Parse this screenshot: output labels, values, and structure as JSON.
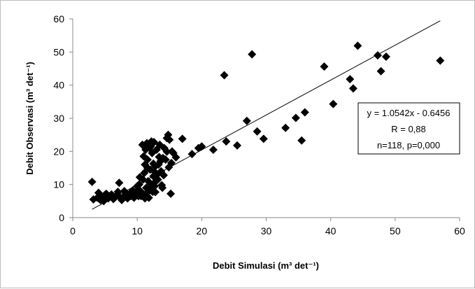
{
  "chart_data": {
    "type": "scatter",
    "title": "",
    "xlabel": "Debit Simulasi (m³ det⁻¹)",
    "ylabel": "Debit Observasi (m³ det⁻¹)",
    "xlim": [
      0,
      60
    ],
    "ylim": [
      0,
      60
    ],
    "xticks": [
      "0",
      "10",
      "20",
      "30",
      "40",
      "50",
      "60"
    ],
    "yticks": [
      "0",
      "10",
      "20",
      "30",
      "40",
      "50",
      "60"
    ],
    "grid": false,
    "legend": "none",
    "marker": "diamond",
    "marker_color": "#000000",
    "trendline": {
      "slope": 1.0542,
      "intercept": -0.6456,
      "x_range": [
        3,
        57
      ]
    },
    "annotation_lines": [
      "y = 1.0542x - 0.6456",
      "R = 0,88",
      "n=118, p=0,000"
    ],
    "points": [
      [
        3.0,
        10.8
      ],
      [
        3.2,
        5.5
      ],
      [
        3.8,
        6.0
      ],
      [
        4.0,
        7.5
      ],
      [
        4.3,
        5.3
      ],
      [
        4.6,
        6.2
      ],
      [
        4.8,
        5.0
      ],
      [
        5.2,
        7.2
      ],
      [
        5.5,
        5.8
      ],
      [
        5.8,
        6.5
      ],
      [
        6.0,
        7.0
      ],
      [
        6.3,
        5.6
      ],
      [
        6.6,
        6.2
      ],
      [
        7.0,
        7.8
      ],
      [
        7.2,
        10.5
      ],
      [
        7.4,
        6.0
      ],
      [
        7.6,
        5.3
      ],
      [
        8.0,
        8.0
      ],
      [
        8.2,
        6.3
      ],
      [
        8.5,
        5.8
      ],
      [
        9.0,
        6.5
      ],
      [
        9.2,
        7.3
      ],
      [
        9.5,
        6.0
      ],
      [
        9.8,
        7.6
      ],
      [
        10.0,
        9.5
      ],
      [
        10.1,
        6.8
      ],
      [
        10.3,
        10.0
      ],
      [
        10.5,
        8.0
      ],
      [
        10.6,
        6.5
      ],
      [
        10.8,
        22.0
      ],
      [
        11.0,
        18.5
      ],
      [
        11.1,
        13.5
      ],
      [
        11.2,
        16.0
      ],
      [
        11.3,
        20.5
      ],
      [
        11.4,
        9.0
      ],
      [
        11.5,
        22.5
      ],
      [
        11.6,
        17.5
      ],
      [
        11.7,
        11.0
      ],
      [
        11.8,
        6.0
      ],
      [
        11.9,
        8.5
      ],
      [
        12.0,
        14.5
      ],
      [
        12.1,
        21.5
      ],
      [
        12.2,
        10.0
      ],
      [
        12.3,
        19.5
      ],
      [
        12.4,
        7.8
      ],
      [
        12.5,
        12.5
      ],
      [
        12.6,
        22.8
      ],
      [
        12.7,
        9.5
      ],
      [
        12.8,
        15.5
      ],
      [
        13.0,
        20.5
      ],
      [
        13.2,
        11.5
      ],
      [
        13.3,
        16.0
      ],
      [
        13.5,
        22.0
      ],
      [
        13.6,
        17.0
      ],
      [
        13.8,
        9.8
      ],
      [
        14.0,
        18.0
      ],
      [
        14.2,
        21.0
      ],
      [
        14.4,
        17.5
      ],
      [
        14.6,
        24.0
      ],
      [
        14.8,
        25.0
      ],
      [
        15.0,
        23.5
      ],
      [
        15.2,
        7.2
      ],
      [
        15.4,
        20.0
      ],
      [
        15.6,
        19.5
      ],
      [
        16.0,
        18.2
      ],
      [
        17.0,
        23.8
      ],
      [
        18.5,
        19.2
      ],
      [
        19.5,
        21.0
      ],
      [
        20.0,
        21.5
      ],
      [
        21.8,
        20.5
      ],
      [
        23.5,
        43.0
      ],
      [
        23.8,
        23.0
      ],
      [
        25.5,
        21.8
      ],
      [
        27.0,
        29.2
      ],
      [
        27.8,
        49.3
      ],
      [
        28.6,
        26.0
      ],
      [
        29.6,
        23.8
      ],
      [
        33.0,
        27.1
      ],
      [
        34.6,
        30.1
      ],
      [
        35.5,
        23.3
      ],
      [
        36.0,
        31.8
      ],
      [
        39.0,
        45.6
      ],
      [
        40.4,
        34.3
      ],
      [
        43.0,
        41.8
      ],
      [
        43.5,
        39.0
      ],
      [
        44.2,
        51.9
      ],
      [
        47.3,
        49.0
      ],
      [
        47.8,
        44.2
      ],
      [
        48.6,
        48.6
      ],
      [
        57.0,
        47.4
      ],
      [
        10.9,
        11.5
      ],
      [
        12.0,
        8.3
      ],
      [
        13.1,
        13.0
      ],
      [
        10.2,
        6.5
      ],
      [
        11.6,
        15.0
      ],
      [
        12.9,
        11.0
      ],
      [
        14.1,
        12.8
      ],
      [
        9.3,
        8.2
      ],
      [
        6.8,
        6.7
      ],
      [
        5.0,
        6.9
      ],
      [
        10.7,
        7.4
      ],
      [
        13.7,
        14.0
      ],
      [
        12.5,
        16.3
      ],
      [
        11.3,
        7.1
      ],
      [
        14.9,
        15.2
      ],
      [
        12.2,
        23.0
      ],
      [
        13.4,
        18.3
      ],
      [
        11.9,
        21.0
      ],
      [
        10.4,
        12.2
      ],
      [
        9.7,
        6.9
      ],
      [
        8.8,
        7.1
      ],
      [
        7.9,
        6.4
      ],
      [
        14.6,
        19.9
      ],
      [
        15.3,
        16.5
      ],
      [
        12.8,
        7.7
      ],
      [
        13.9,
        9.0
      ],
      [
        11.2,
        5.8
      ],
      [
        12.7,
        13.8
      ]
    ]
  }
}
